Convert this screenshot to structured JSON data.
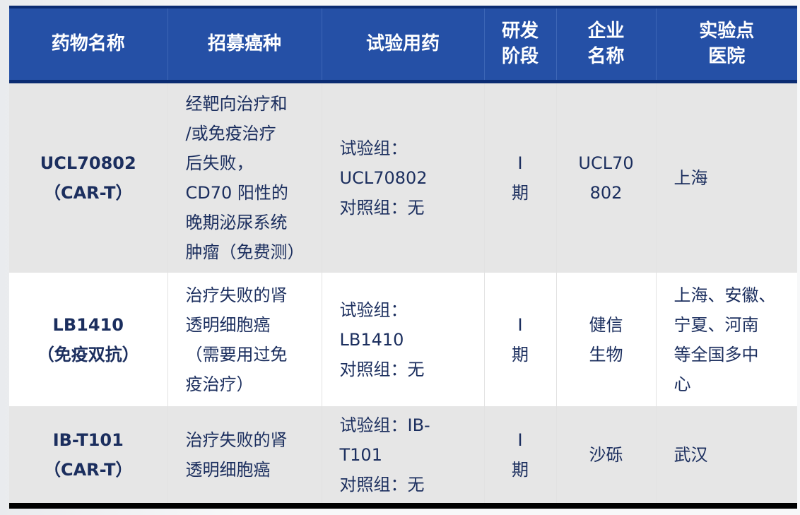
{
  "headers": [
    "药物名称",
    "招募癌种",
    "试验用药",
    "研发\n阶段",
    "企业\n名称",
    "实验点\n医院"
  ],
  "rows": [
    {
      "drug": [
        "UCL70802",
        "（CAR-T）"
      ],
      "cancer": [
        "经靶向治疗和",
        "/或免疫治疗",
        "后失败，",
        "CD70 阳性的",
        "晚期泌尿系统",
        "肿瘤（免费测）"
      ],
      "medication": [
        "试验组：",
        "UCL70802",
        "对照组：无"
      ],
      "phase": [
        "I",
        "期"
      ],
      "company": [
        "UCL70",
        "802"
      ],
      "hospital": [
        "上海"
      ]
    },
    {
      "drug": [
        "LB1410",
        "（免疫双抗）"
      ],
      "cancer": [
        "治疗失败的肾",
        "透明细胞癌",
        "（需要用过免",
        "疫治疗）"
      ],
      "medication": [
        "试验组：",
        "LB1410",
        "对照组：无"
      ],
      "phase": [
        "I",
        "期"
      ],
      "company": [
        "健信",
        "生物"
      ],
      "hospital": [
        "上海、安徽、",
        "宁夏、河南",
        "等全国多中",
        "心"
      ]
    },
    {
      "drug": [
        "IB-T101",
        "（CAR-T）"
      ],
      "cancer": [
        "治疗失败的肾",
        "透明细胞癌"
      ],
      "medication": [
        "试验组：IB-",
        "T101",
        "对照组：无"
      ],
      "phase": [
        "I",
        "期"
      ],
      "company": [
        "沙砾"
      ],
      "hospital": [
        "武汉"
      ]
    }
  ],
  "colors": {
    "header_bg": "#2550a6",
    "header_border": "#0b2c72",
    "text": "#1b2e5e",
    "row_alt": "#e6e6e6"
  }
}
